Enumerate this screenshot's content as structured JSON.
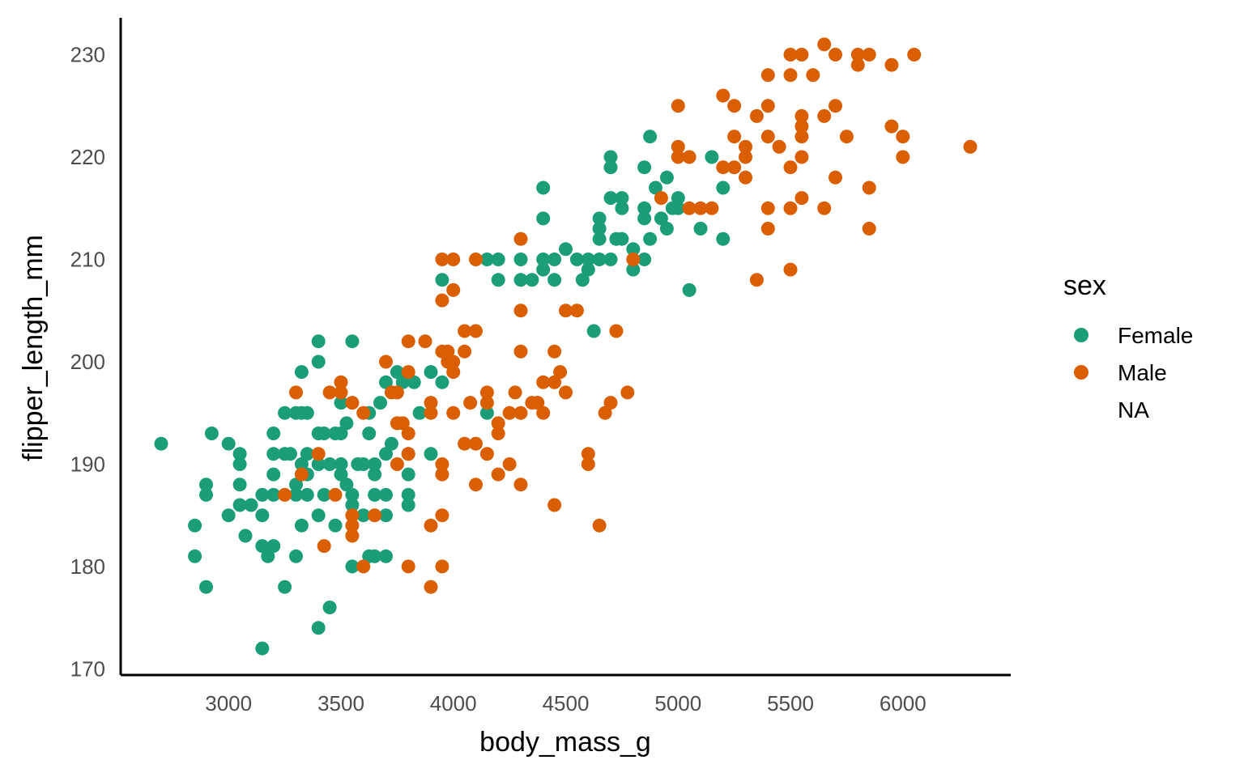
{
  "chart_data": {
    "type": "scatter",
    "title": "",
    "xlabel": "body_mass_g",
    "ylabel": "flipper_length_mm",
    "xlim": [
      2520,
      6480
    ],
    "ylim": [
      169.4,
      233.6
    ],
    "x_ticks": [
      3000,
      3500,
      4000,
      4500,
      5000,
      5500,
      6000
    ],
    "y_ticks": [
      170,
      180,
      190,
      200,
      210,
      220,
      230
    ],
    "grid": false,
    "legend": {
      "title": "sex",
      "position": "right",
      "entries": [
        {
          "label": "Female",
          "color": "#1B9E77"
        },
        {
          "label": "Male",
          "color": "#D95F02"
        },
        {
          "label": "NA",
          "color": ""
        }
      ]
    },
    "series": [
      {
        "name": "Female",
        "color": "#1B9E77",
        "points": [
          [
            2700,
            192
          ],
          [
            2850,
            184
          ],
          [
            2850,
            181
          ],
          [
            2900,
            188
          ],
          [
            2900,
            187
          ],
          [
            2900,
            178
          ],
          [
            2925,
            193
          ],
          [
            3000,
            192
          ],
          [
            3000,
            185
          ],
          [
            3050,
            191
          ],
          [
            3050,
            190
          ],
          [
            3050,
            188
          ],
          [
            3050,
            186
          ],
          [
            3075,
            183
          ],
          [
            3100,
            186
          ],
          [
            3150,
            187
          ],
          [
            3150,
            185
          ],
          [
            3150,
            182
          ],
          [
            3150,
            172
          ],
          [
            3175,
            181
          ],
          [
            3200,
            193
          ],
          [
            3200,
            191
          ],
          [
            3200,
            189
          ],
          [
            3200,
            187
          ],
          [
            3200,
            182
          ],
          [
            3250,
            195
          ],
          [
            3250,
            191
          ],
          [
            3250,
            178
          ],
          [
            3275,
            191
          ],
          [
            3300,
            195
          ],
          [
            3300,
            188
          ],
          [
            3300,
            187
          ],
          [
            3300,
            181
          ],
          [
            3325,
            199
          ],
          [
            3325,
            195
          ],
          [
            3325,
            190
          ],
          [
            3325,
            184
          ],
          [
            3350,
            195
          ],
          [
            3350,
            191
          ],
          [
            3350,
            189
          ],
          [
            3350,
            187
          ],
          [
            3400,
            202
          ],
          [
            3400,
            200
          ],
          [
            3400,
            193
          ],
          [
            3400,
            190
          ],
          [
            3400,
            185
          ],
          [
            3400,
            174
          ],
          [
            3425,
            193
          ],
          [
            3425,
            187
          ],
          [
            3450,
            190
          ],
          [
            3450,
            176
          ],
          [
            3475,
            193
          ],
          [
            3475,
            184
          ],
          [
            3500,
            196
          ],
          [
            3500,
            193
          ],
          [
            3500,
            190
          ],
          [
            3500,
            189
          ],
          [
            3525,
            194
          ],
          [
            3525,
            188
          ],
          [
            3550,
            202
          ],
          [
            3550,
            187
          ],
          [
            3550,
            186
          ],
          [
            3550,
            180
          ],
          [
            3575,
            190
          ],
          [
            3600,
            190
          ],
          [
            3600,
            185
          ],
          [
            3625,
            195
          ],
          [
            3625,
            193
          ],
          [
            3625,
            181
          ],
          [
            3650,
            190
          ],
          [
            3650,
            189
          ],
          [
            3650,
            187
          ],
          [
            3650,
            181
          ],
          [
            3675,
            196
          ],
          [
            3700,
            198
          ],
          [
            3700,
            191
          ],
          [
            3700,
            187
          ],
          [
            3700,
            185
          ],
          [
            3700,
            181
          ],
          [
            3725,
            192
          ],
          [
            3750,
            199
          ],
          [
            3775,
            198
          ],
          [
            3800,
            191
          ],
          [
            3800,
            189
          ],
          [
            3800,
            187
          ],
          [
            3800,
            186
          ],
          [
            3825,
            198
          ],
          [
            3850,
            195
          ],
          [
            3900,
            199
          ],
          [
            3900,
            191
          ],
          [
            3950,
            198
          ],
          [
            3950,
            208
          ],
          [
            4150,
            210
          ],
          [
            4150,
            195
          ],
          [
            4200,
            210
          ],
          [
            4200,
            208
          ],
          [
            4300,
            210
          ],
          [
            4300,
            208
          ],
          [
            4350,
            208
          ],
          [
            4400,
            217
          ],
          [
            4400,
            214
          ],
          [
            4400,
            210
          ],
          [
            4400,
            209
          ],
          [
            4450,
            210
          ],
          [
            4450,
            208
          ],
          [
            4500,
            211
          ],
          [
            4550,
            210
          ],
          [
            4575,
            208
          ],
          [
            4600,
            210
          ],
          [
            4600,
            209
          ],
          [
            4625,
            203
          ],
          [
            4650,
            214
          ],
          [
            4650,
            213
          ],
          [
            4650,
            212
          ],
          [
            4650,
            210
          ],
          [
            4700,
            220
          ],
          [
            4700,
            219
          ],
          [
            4700,
            216
          ],
          [
            4700,
            210
          ],
          [
            4725,
            212
          ],
          [
            4750,
            216
          ],
          [
            4750,
            215
          ],
          [
            4750,
            212
          ],
          [
            4800,
            211
          ],
          [
            4800,
            209
          ],
          [
            4850,
            219
          ],
          [
            4850,
            215
          ],
          [
            4850,
            214
          ],
          [
            4850,
            210
          ],
          [
            4875,
            222
          ],
          [
            4875,
            212
          ],
          [
            4900,
            217
          ],
          [
            4925,
            214
          ],
          [
            4950,
            218
          ],
          [
            4950,
            213
          ],
          [
            4975,
            215
          ],
          [
            5000,
            216
          ],
          [
            5000,
            215
          ],
          [
            5050,
            207
          ],
          [
            5100,
            213
          ],
          [
            5150,
            220
          ],
          [
            5200,
            217
          ],
          [
            5200,
            212
          ]
        ]
      },
      {
        "name": "Male",
        "color": "#D95F02",
        "points": [
          [
            3250,
            187
          ],
          [
            3300,
            197
          ],
          [
            3325,
            189
          ],
          [
            3400,
            191
          ],
          [
            3425,
            182
          ],
          [
            3450,
            197
          ],
          [
            3475,
            187
          ],
          [
            3500,
            198
          ],
          [
            3500,
            197
          ],
          [
            3550,
            196
          ],
          [
            3550,
            185
          ],
          [
            3550,
            184
          ],
          [
            3550,
            183
          ],
          [
            3600,
            195
          ],
          [
            3600,
            180
          ],
          [
            3650,
            185
          ],
          [
            3700,
            200
          ],
          [
            3725,
            197
          ],
          [
            3750,
            197
          ],
          [
            3750,
            194
          ],
          [
            3750,
            190
          ],
          [
            3775,
            194
          ],
          [
            3800,
            202
          ],
          [
            3800,
            199
          ],
          [
            3800,
            193
          ],
          [
            3800,
            191
          ],
          [
            3800,
            180
          ],
          [
            3875,
            202
          ],
          [
            3900,
            196
          ],
          [
            3900,
            195
          ],
          [
            3900,
            184
          ],
          [
            3900,
            178
          ],
          [
            3950,
            210
          ],
          [
            3950,
            206
          ],
          [
            3950,
            201
          ],
          [
            3950,
            190
          ],
          [
            3950,
            189
          ],
          [
            3950,
            185
          ],
          [
            3950,
            180
          ],
          [
            3975,
            201
          ],
          [
            3975,
            200
          ],
          [
            4000,
            210
          ],
          [
            4000,
            207
          ],
          [
            4000,
            200
          ],
          [
            4000,
            199
          ],
          [
            4000,
            195
          ],
          [
            4050,
            203
          ],
          [
            4050,
            201
          ],
          [
            4050,
            192
          ],
          [
            4075,
            196
          ],
          [
            4100,
            210
          ],
          [
            4100,
            203
          ],
          [
            4100,
            192
          ],
          [
            4100,
            188
          ],
          [
            4150,
            197
          ],
          [
            4150,
            196
          ],
          [
            4150,
            191
          ],
          [
            4200,
            194
          ],
          [
            4200,
            193
          ],
          [
            4200,
            189
          ],
          [
            4250,
            195
          ],
          [
            4250,
            190
          ],
          [
            4275,
            197
          ],
          [
            4300,
            212
          ],
          [
            4300,
            205
          ],
          [
            4300,
            201
          ],
          [
            4300,
            195
          ],
          [
            4300,
            188
          ],
          [
            4350,
            196
          ],
          [
            4375,
            196
          ],
          [
            4400,
            198
          ],
          [
            4400,
            195
          ],
          [
            4450,
            201
          ],
          [
            4450,
            198
          ],
          [
            4450,
            186
          ],
          [
            4475,
            199
          ],
          [
            4500,
            205
          ],
          [
            4500,
            197
          ],
          [
            4550,
            205
          ],
          [
            4600,
            191
          ],
          [
            4600,
            190
          ],
          [
            4650,
            184
          ],
          [
            4675,
            195
          ],
          [
            4700,
            196
          ],
          [
            4725,
            203
          ],
          [
            4775,
            197
          ],
          [
            4800,
            210
          ],
          [
            4925,
            216
          ],
          [
            5000,
            225
          ],
          [
            5000,
            221
          ],
          [
            5000,
            220
          ],
          [
            5050,
            220
          ],
          [
            5050,
            215
          ],
          [
            5100,
            215
          ],
          [
            5150,
            215
          ],
          [
            5200,
            226
          ],
          [
            5200,
            219
          ],
          [
            5250,
            225
          ],
          [
            5250,
            222
          ],
          [
            5250,
            219
          ],
          [
            5300,
            221
          ],
          [
            5300,
            220
          ],
          [
            5300,
            218
          ],
          [
            5350,
            224
          ],
          [
            5350,
            208
          ],
          [
            5400,
            228
          ],
          [
            5400,
            225
          ],
          [
            5400,
            222
          ],
          [
            5400,
            215
          ],
          [
            5400,
            213
          ],
          [
            5450,
            221
          ],
          [
            5500,
            230
          ],
          [
            5500,
            228
          ],
          [
            5500,
            219
          ],
          [
            5500,
            215
          ],
          [
            5500,
            209
          ],
          [
            5550,
            230
          ],
          [
            5550,
            224
          ],
          [
            5550,
            223
          ],
          [
            5550,
            222
          ],
          [
            5550,
            220
          ],
          [
            5550,
            216
          ],
          [
            5600,
            228
          ],
          [
            5650,
            231
          ],
          [
            5650,
            224
          ],
          [
            5650,
            215
          ],
          [
            5700,
            230
          ],
          [
            5700,
            225
          ],
          [
            5700,
            218
          ],
          [
            5750,
            222
          ],
          [
            5800,
            230
          ],
          [
            5800,
            229
          ],
          [
            5850,
            230
          ],
          [
            5850,
            217
          ],
          [
            5850,
            213
          ],
          [
            5950,
            229
          ],
          [
            5950,
            223
          ],
          [
            6000,
            222
          ],
          [
            6000,
            220
          ],
          [
            6050,
            230
          ],
          [
            6300,
            221
          ]
        ]
      }
    ]
  }
}
